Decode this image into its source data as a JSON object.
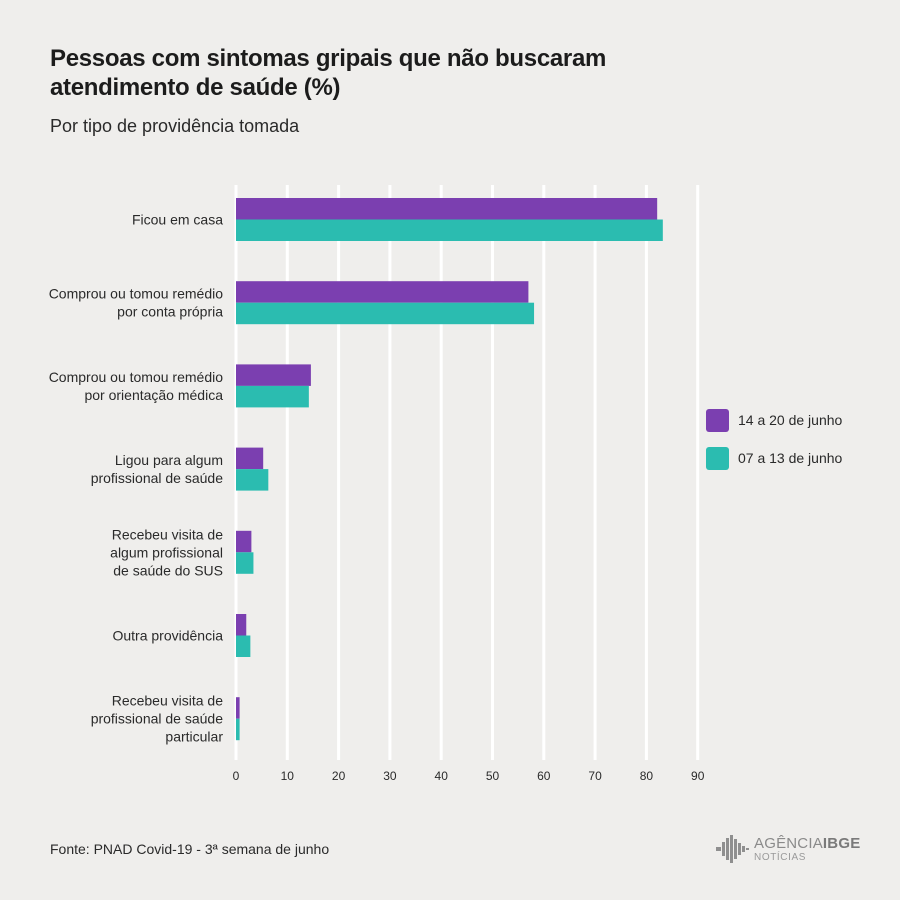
{
  "header": {
    "title": "Pessoas com sintomas gripais que não buscaram atendimento de saúde (%)",
    "subtitle": "Por tipo de providência tomada"
  },
  "footer": {
    "source": "Fonte: PNAD Covid-19 - 3ª semana de junho",
    "logo_line1_a": "AGÊNCIA",
    "logo_line1_b": "IBGE",
    "logo_line2": "NOTÍCIAS"
  },
  "legend": {
    "items": [
      {
        "label": "14 a 20 de junho",
        "color": "#7b3fb0"
      },
      {
        "label": "07 a 13 de junho",
        "color": "#2bbcb0"
      }
    ]
  },
  "chart_data": {
    "type": "bar",
    "orientation": "horizontal",
    "title": "Pessoas com sintomas gripais que não buscaram atendimento de saúde (%)",
    "subtitle": "Por tipo de providência tomada",
    "categories": [
      [
        "Ficou em casa"
      ],
      [
        "Comprou ou tomou remédio",
        "por conta própria"
      ],
      [
        "Comprou ou tomou remédio",
        "por orientação médica"
      ],
      [
        "Ligou para algum",
        "profissional de saúde"
      ],
      [
        "Recebeu visita de",
        "algum profissional",
        "de saúde do SUS"
      ],
      [
        "Outra providência"
      ],
      [
        "Recebeu visita de",
        "profissional de saúde",
        "particular"
      ]
    ],
    "series": [
      {
        "name": "14 a 20 de junho",
        "color": "#7b3fb0",
        "values": [
          82.1,
          57.0,
          14.6,
          5.3,
          3.0,
          2.0,
          0.7
        ]
      },
      {
        "name": "07 a 13 de junho",
        "color": "#2bbcb0",
        "values": [
          83.2,
          58.1,
          14.2,
          6.3,
          3.4,
          2.8,
          0.7
        ]
      }
    ],
    "xlim": [
      0,
      90
    ],
    "xticks": [
      0,
      10,
      20,
      30,
      40,
      50,
      60,
      70,
      80,
      90
    ],
    "grid": true,
    "legend_position": "right"
  }
}
